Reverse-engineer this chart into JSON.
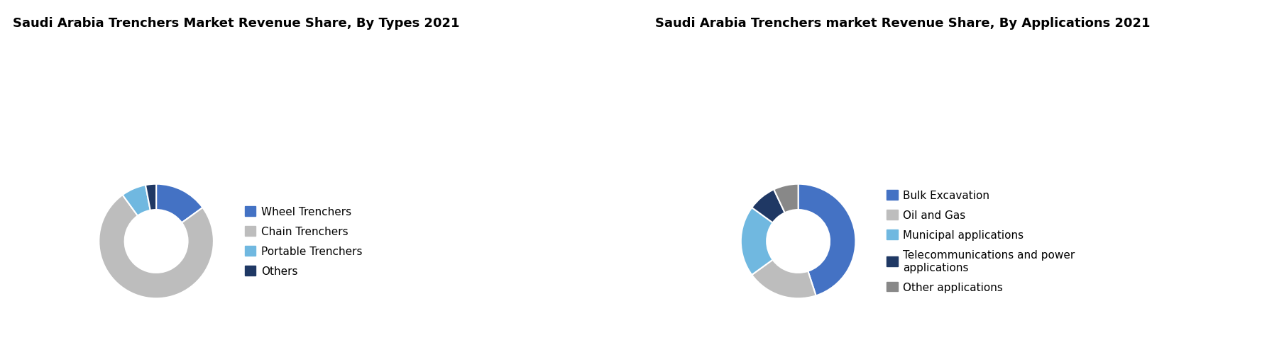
{
  "chart1": {
    "title": "Saudi Arabia Trenchers Market Revenue Share, By Types 2021",
    "labels": [
      "Wheel Trenchers",
      "Chain Trenchers",
      "Portable Trenchers",
      "Others"
    ],
    "values": [
      15,
      75,
      7,
      3
    ],
    "colors": [
      "#4472C4",
      "#BDBDBD",
      "#70B8E0",
      "#1F3864"
    ],
    "startangle": 90
  },
  "chart2": {
    "title": "Saudi Arabia Trenchers market Revenue Share, By Applications 2021",
    "labels": [
      "Bulk Excavation",
      "Oil and Gas",
      "Municipal applications",
      "Telecommunications and power\napplications",
      "Other applications"
    ],
    "values": [
      45,
      20,
      20,
      8,
      7
    ],
    "colors": [
      "#4472C4",
      "#BDBDBD",
      "#70B8E0",
      "#1F3864",
      "#888888"
    ],
    "startangle": 90
  },
  "background_color": "#FFFFFF",
  "title_fontsize": 13,
  "legend_fontsize": 11,
  "donut_width": 0.45
}
